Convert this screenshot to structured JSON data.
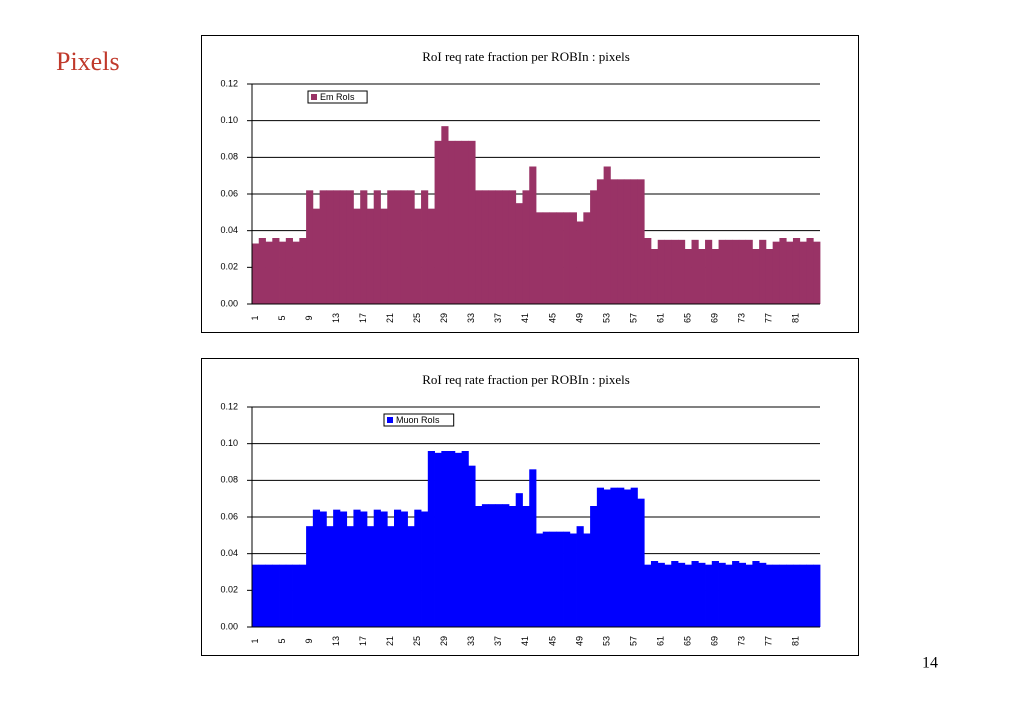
{
  "slide_title": "Pixels",
  "page_number": "14",
  "chart_data": [
    {
      "type": "bar",
      "title": "RoI req rate fraction per ROBIn : pixels",
      "categories": [
        "1",
        null,
        null,
        null,
        "5",
        null,
        null,
        null,
        "9",
        null,
        null,
        null,
        "13",
        null,
        null,
        null,
        "17",
        null,
        null,
        null,
        "21",
        null,
        null,
        null,
        "25",
        null,
        null,
        null,
        "29",
        null,
        null,
        null,
        "33",
        null,
        null,
        null,
        "37",
        null,
        null,
        null,
        "41",
        null,
        null,
        null,
        "45",
        null,
        null,
        null,
        "49",
        null,
        null,
        null,
        "53",
        null,
        null,
        null,
        "57",
        null,
        null,
        null,
        "61",
        null,
        null,
        null,
        "65",
        null,
        null,
        null,
        "69",
        null,
        null,
        null,
        "73",
        null,
        null,
        null,
        "77",
        null,
        null,
        null,
        "81",
        null,
        null,
        null
      ],
      "series": [
        {
          "name": "Em RoIs",
          "color": "#993366",
          "values": [
            0.033,
            0.036,
            0.034,
            0.036,
            0.034,
            0.036,
            0.034,
            0.036,
            0.062,
            0.052,
            0.062,
            0.062,
            0.062,
            0.062,
            0.062,
            0.052,
            0.062,
            0.052,
            0.062,
            0.052,
            0.062,
            0.062,
            0.062,
            0.062,
            0.052,
            0.062,
            0.052,
            0.089,
            0.097,
            0.089,
            0.089,
            0.089,
            0.089,
            0.062,
            0.062,
            0.062,
            0.062,
            0.062,
            0.062,
            0.055,
            0.062,
            0.075,
            0.05,
            0.05,
            0.05,
            0.05,
            0.05,
            0.05,
            0.045,
            0.05,
            0.062,
            0.068,
            0.075,
            0.068,
            0.068,
            0.068,
            0.068,
            0.068,
            0.036,
            0.03,
            0.035,
            0.035,
            0.035,
            0.035,
            0.03,
            0.035,
            0.03,
            0.035,
            0.03,
            0.035,
            0.035,
            0.035,
            0.035,
            0.035,
            0.03,
            0.035,
            0.03,
            0.034,
            0.036,
            0.034,
            0.036,
            0.034,
            0.036,
            0.034
          ]
        }
      ],
      "ylim": [
        0,
        0.12
      ],
      "yticks": [
        {
          "value": 0,
          "label": "0.00"
        },
        0.02,
        0.04,
        0.06,
        0.08,
        {
          "value": 0.1,
          "label": "0.10"
        },
        0.12
      ],
      "grid": true,
      "legend": "upper left"
    },
    {
      "type": "bar",
      "title": "RoI req rate fraction per ROBIn : pixels",
      "categories": [
        "1",
        null,
        null,
        null,
        "5",
        null,
        null,
        null,
        "9",
        null,
        null,
        null,
        "13",
        null,
        null,
        null,
        "17",
        null,
        null,
        null,
        "21",
        null,
        null,
        null,
        "25",
        null,
        null,
        null,
        "29",
        null,
        null,
        null,
        "33",
        null,
        null,
        null,
        "37",
        null,
        null,
        null,
        "41",
        null,
        null,
        null,
        "45",
        null,
        null,
        null,
        "49",
        null,
        null,
        null,
        "53",
        null,
        null,
        null,
        "57",
        null,
        null,
        null,
        "61",
        null,
        null,
        null,
        "65",
        null,
        null,
        null,
        "69",
        null,
        null,
        null,
        "73",
        null,
        null,
        null,
        "77",
        null,
        null,
        null,
        "81",
        null,
        null,
        null
      ],
      "series": [
        {
          "name": "Muon RoIs",
          "color": "#0000ff",
          "values": [
            0.034,
            0.034,
            0.034,
            0.034,
            0.034,
            0.034,
            0.034,
            0.034,
            0.055,
            0.064,
            0.063,
            0.055,
            0.064,
            0.063,
            0.055,
            0.064,
            0.063,
            0.055,
            0.064,
            0.063,
            0.055,
            0.064,
            0.063,
            0.055,
            0.064,
            0.063,
            0.096,
            0.095,
            0.096,
            0.096,
            0.095,
            0.096,
            0.088,
            0.066,
            0.067,
            0.067,
            0.067,
            0.067,
            0.066,
            0.073,
            0.066,
            0.086,
            0.051,
            0.052,
            0.052,
            0.052,
            0.052,
            0.051,
            0.055,
            0.051,
            0.066,
            0.076,
            0.075,
            0.076,
            0.076,
            0.075,
            0.076,
            0.07,
            0.034,
            0.036,
            0.035,
            0.034,
            0.036,
            0.035,
            0.034,
            0.036,
            0.035,
            0.034,
            0.036,
            0.035,
            0.034,
            0.036,
            0.035,
            0.034,
            0.036,
            0.035,
            0.034,
            0.034,
            0.034,
            0.034,
            0.034,
            0.034,
            0.034,
            0.034
          ]
        }
      ],
      "ylim": [
        0,
        0.12
      ],
      "yticks": [
        {
          "value": 0,
          "label": "0.00"
        },
        0.02,
        0.04,
        0.06,
        0.08,
        {
          "value": 0.1,
          "label": "0.10"
        },
        0.12
      ],
      "grid": true,
      "legend": "upper left"
    }
  ]
}
